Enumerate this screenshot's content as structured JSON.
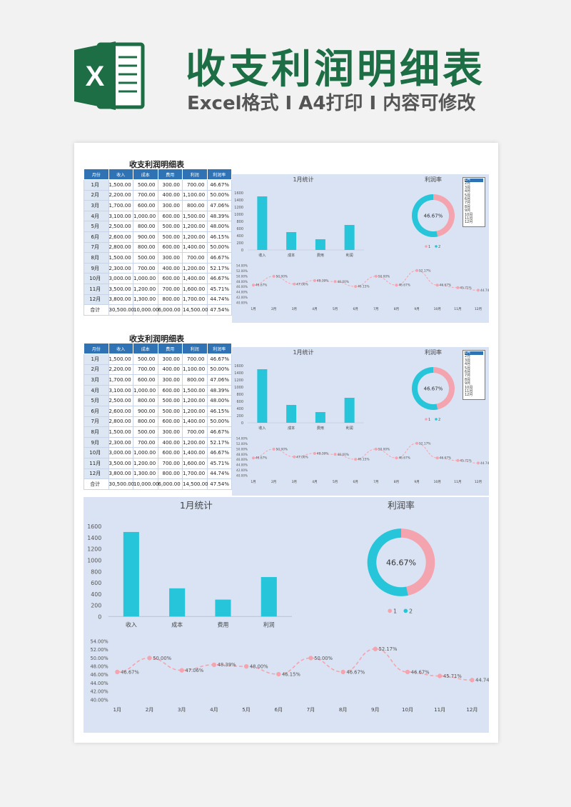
{
  "hero": {
    "logo_letter": "X",
    "title": "收支利润明细表",
    "subtitle": "Excel格式 I A4打印 I 内容可修改"
  },
  "colors": {
    "bar": "#26c5d9",
    "pink": "#f4a4ae",
    "table_header": "#2f73b5",
    "dash_bg": "#dae3f3",
    "brand_green": "#1e6e45"
  },
  "table": {
    "title": "收支利润明细表",
    "headers": [
      "月份",
      "收入",
      "成本",
      "费用",
      "利润",
      "利润率"
    ],
    "rows": [
      [
        "1月",
        "1,500.00",
        "500.00",
        "300.00",
        "700.00",
        "46.67%"
      ],
      [
        "2月",
        "2,200.00",
        "700.00",
        "400.00",
        "1,100.00",
        "50.00%"
      ],
      [
        "3月",
        "1,700.00",
        "600.00",
        "300.00",
        "800.00",
        "47.06%"
      ],
      [
        "4月",
        "3,100.00",
        "1,000.00",
        "600.00",
        "1,500.00",
        "48.39%"
      ],
      [
        "5月",
        "2,500.00",
        "800.00",
        "500.00",
        "1,200.00",
        "48.00%"
      ],
      [
        "6月",
        "2,600.00",
        "900.00",
        "500.00",
        "1,200.00",
        "46.15%"
      ],
      [
        "7月",
        "2,800.00",
        "800.00",
        "600.00",
        "1,400.00",
        "50.00%"
      ],
      [
        "8月",
        "1,500.00",
        "500.00",
        "300.00",
        "700.00",
        "46.67%"
      ],
      [
        "9月",
        "2,300.00",
        "700.00",
        "400.00",
        "1,200.00",
        "52.17%"
      ],
      [
        "10月",
        "3,000.00",
        "1,000.00",
        "600.00",
        "1,400.00",
        "46.67%"
      ],
      [
        "11月",
        "3,500.00",
        "1,200.00",
        "700.00",
        "1,600.00",
        "45.71%"
      ],
      [
        "12月",
        "3,800.00",
        "1,300.00",
        "800.00",
        "1,700.00",
        "44.74%"
      ]
    ],
    "total": [
      "合计",
      "30,500.00",
      "10,000.00",
      "6,000.00",
      "14,500.00",
      "47.54%"
    ]
  },
  "selector": {
    "options": [
      "1月",
      "2月",
      "3月",
      "4月",
      "5月",
      "6月",
      "7月",
      "8月",
      "9月",
      "10月",
      "11月",
      "12月"
    ],
    "selected": "1月"
  },
  "chart_data": [
    {
      "type": "bar",
      "title": "1月统计",
      "categories": [
        "收入",
        "成本",
        "费用",
        "利润"
      ],
      "values": [
        1500,
        500,
        300,
        700
      ],
      "ylim": [
        0,
        1600
      ],
      "yticks": [
        "0",
        "200",
        "400",
        "600",
        "800",
        "1000",
        "1200",
        "1400",
        "1600"
      ],
      "grid": false
    },
    {
      "type": "pie",
      "title": "利润率",
      "center_label": "46.67%",
      "slices": [
        {
          "name": "1",
          "value": 46.67,
          "color": "#f4a4ae"
        },
        {
          "name": "2",
          "value": 53.33,
          "color": "#26c5d9"
        }
      ],
      "legend": [
        "1",
        "2"
      ],
      "legend_position": "bottom"
    },
    {
      "type": "line",
      "categories": [
        "1月",
        "2月",
        "3月",
        "4月",
        "5月",
        "6月",
        "7月",
        "8月",
        "9月",
        "10月",
        "11月",
        "12月"
      ],
      "values": [
        46.67,
        50.0,
        47.06,
        48.39,
        48.0,
        46.15,
        50.0,
        46.67,
        52.17,
        46.67,
        45.71,
        44.74
      ],
      "data_labels": [
        "46.67%",
        "50.00%",
        "47.06%",
        "48.39%",
        "48.00%",
        "46.15%",
        "50.00%",
        "46.67%",
        "52.17%",
        "46.67%",
        "45.71%",
        "44.74%"
      ],
      "ylim": [
        40,
        54
      ],
      "yticks": [
        "40.00%",
        "42.00%",
        "44.00%",
        "46.00%",
        "48.00%",
        "50.00%",
        "52.00%",
        "54.00%"
      ],
      "line_style": "dashed"
    }
  ]
}
